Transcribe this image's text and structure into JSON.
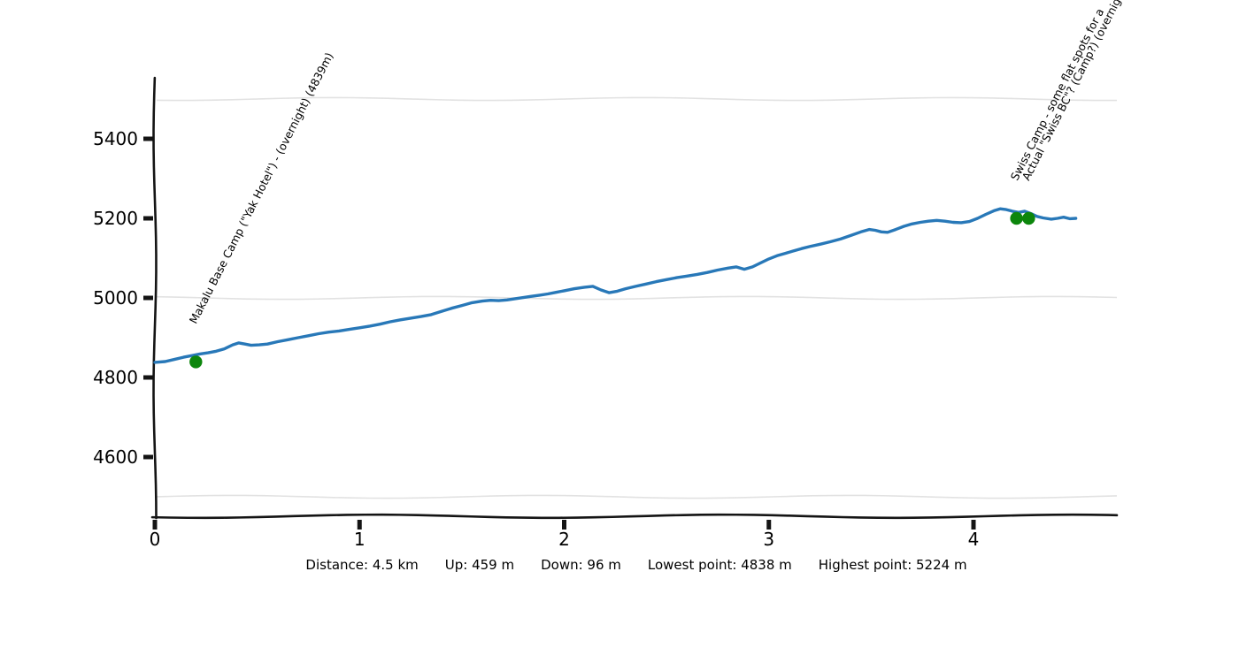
{
  "chart_data": {
    "type": "line",
    "title": "",
    "xlabel": "",
    "ylabel": "",
    "x_unit": "km",
    "y_unit": "m",
    "x_ticks": [
      0,
      1,
      2,
      3,
      4
    ],
    "y_ticks": [
      4600,
      4800,
      5000,
      5200,
      5400
    ],
    "gridlines_y": [
      4500,
      5000,
      5500
    ],
    "xlim": [
      0,
      4.7
    ],
    "ylim": [
      4490,
      5540
    ],
    "grid": "horizontal-light",
    "legend": "none",
    "line_color": "#2878b8",
    "marker_color": "#0c860c",
    "axis_color": "#141414",
    "grid_color": "#e2e2e2",
    "style": "xkcd-hand-drawn",
    "series": [
      {
        "name": "elevation-profile",
        "points": [
          [
            0.0,
            4838
          ],
          [
            0.05,
            4840
          ],
          [
            0.1,
            4846
          ],
          [
            0.14,
            4851
          ],
          [
            0.18,
            4855
          ],
          [
            0.22,
            4859
          ],
          [
            0.26,
            4862
          ],
          [
            0.3,
            4866
          ],
          [
            0.34,
            4872
          ],
          [
            0.38,
            4882
          ],
          [
            0.41,
            4887
          ],
          [
            0.44,
            4884
          ],
          [
            0.47,
            4881
          ],
          [
            0.51,
            4882
          ],
          [
            0.55,
            4884
          ],
          [
            0.6,
            4890
          ],
          [
            0.65,
            4895
          ],
          [
            0.7,
            4900
          ],
          [
            0.75,
            4905
          ],
          [
            0.8,
            4910
          ],
          [
            0.85,
            4914
          ],
          [
            0.9,
            4917
          ],
          [
            0.95,
            4921
          ],
          [
            1.0,
            4925
          ],
          [
            1.05,
            4929
          ],
          [
            1.1,
            4934
          ],
          [
            1.15,
            4940
          ],
          [
            1.2,
            4945
          ],
          [
            1.25,
            4949
          ],
          [
            1.3,
            4953
          ],
          [
            1.35,
            4958
          ],
          [
            1.4,
            4966
          ],
          [
            1.45,
            4974
          ],
          [
            1.5,
            4981
          ],
          [
            1.55,
            4988
          ],
          [
            1.6,
            4992
          ],
          [
            1.64,
            4994
          ],
          [
            1.68,
            4993
          ],
          [
            1.72,
            4995
          ],
          [
            1.76,
            4998
          ],
          [
            1.8,
            5001
          ],
          [
            1.84,
            5004
          ],
          [
            1.88,
            5007
          ],
          [
            1.92,
            5010
          ],
          [
            1.96,
            5014
          ],
          [
            2.0,
            5018
          ],
          [
            2.05,
            5023
          ],
          [
            2.1,
            5027
          ],
          [
            2.14,
            5029
          ],
          [
            2.18,
            5020
          ],
          [
            2.22,
            5013
          ],
          [
            2.26,
            5017
          ],
          [
            2.3,
            5023
          ],
          [
            2.35,
            5029
          ],
          [
            2.4,
            5035
          ],
          [
            2.45,
            5041
          ],
          [
            2.5,
            5046
          ],
          [
            2.55,
            5051
          ],
          [
            2.6,
            5055
          ],
          [
            2.65,
            5059
          ],
          [
            2.7,
            5064
          ],
          [
            2.75,
            5070
          ],
          [
            2.8,
            5075
          ],
          [
            2.84,
            5078
          ],
          [
            2.88,
            5072
          ],
          [
            2.92,
            5078
          ],
          [
            2.96,
            5088
          ],
          [
            3.0,
            5098
          ],
          [
            3.04,
            5106
          ],
          [
            3.08,
            5112
          ],
          [
            3.12,
            5118
          ],
          [
            3.16,
            5124
          ],
          [
            3.2,
            5129
          ],
          [
            3.25,
            5135
          ],
          [
            3.3,
            5141
          ],
          [
            3.35,
            5148
          ],
          [
            3.4,
            5157
          ],
          [
            3.45,
            5166
          ],
          [
            3.49,
            5172
          ],
          [
            3.52,
            5170
          ],
          [
            3.55,
            5166
          ],
          [
            3.58,
            5165
          ],
          [
            3.62,
            5172
          ],
          [
            3.66,
            5180
          ],
          [
            3.7,
            5186
          ],
          [
            3.74,
            5190
          ],
          [
            3.78,
            5193
          ],
          [
            3.82,
            5195
          ],
          [
            3.86,
            5193
          ],
          [
            3.9,
            5190
          ],
          [
            3.94,
            5189
          ],
          [
            3.98,
            5192
          ],
          [
            4.02,
            5200
          ],
          [
            4.06,
            5210
          ],
          [
            4.1,
            5219
          ],
          [
            4.13,
            5224
          ],
          [
            4.16,
            5222
          ],
          [
            4.19,
            5218
          ],
          [
            4.22,
            5215
          ],
          [
            4.25,
            5218
          ],
          [
            4.28,
            5212
          ],
          [
            4.31,
            5205
          ],
          [
            4.34,
            5201
          ],
          [
            4.38,
            5198
          ],
          [
            4.41,
            5200
          ],
          [
            4.44,
            5203
          ],
          [
            4.47,
            5199
          ],
          [
            4.5,
            5200
          ]
        ]
      }
    ],
    "waypoints": [
      {
        "km": 0.2,
        "elev": 4839,
        "label": "Makalu Base Camp (\"Yak Hotel\") - (overnight) (4839m)"
      },
      {
        "km": 4.21,
        "elev": 5200,
        "label": "Swiss Camp - some flat spots for a"
      },
      {
        "km": 4.27,
        "elev": 5200,
        "label": "Actual \"Swiss BC\"? (Camp?) (overnight)"
      }
    ]
  },
  "stats": {
    "items": [
      "Distance: 4.5 km",
      "Up: 459 m",
      "Down: 96 m",
      "Lowest point: 4838 m",
      "Highest point: 5224 m"
    ]
  }
}
